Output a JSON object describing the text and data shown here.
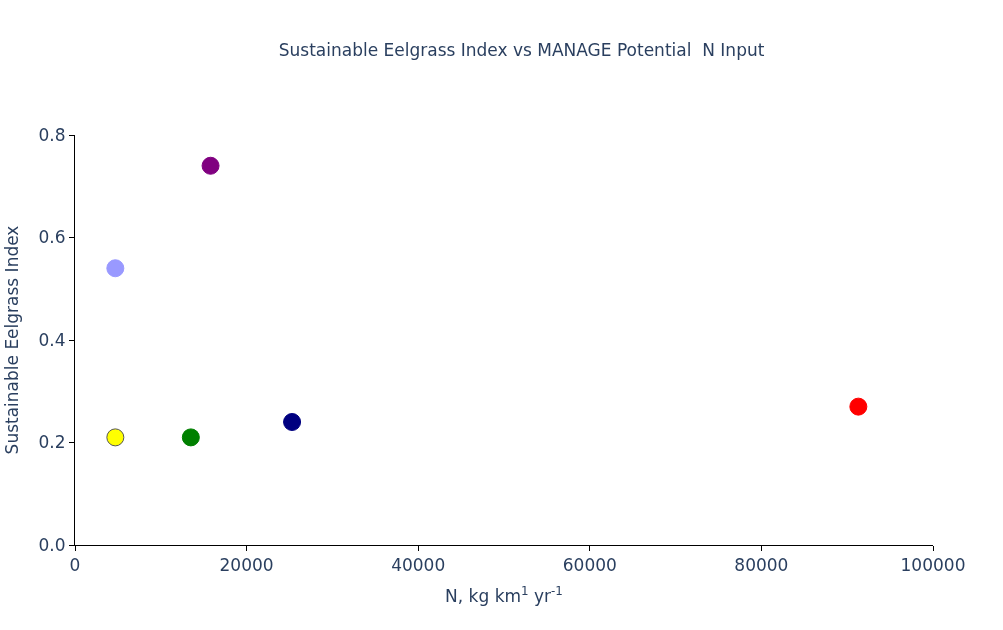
{
  "chart_data": {
    "type": "scatter",
    "title": "Sustainable Eelgrass Index vs MANAGE Potential  N Input",
    "xlabel": "N, kg km$^{1}$ yr$^{-1}$",
    "ylabel": "Sustainable Eelgrass Index",
    "x": [
      4700,
      15800,
      4700,
      13500,
      25300,
      91300
    ],
    "values": [
      0.54,
      0.74,
      0.21,
      0.21,
      0.24,
      0.27
    ],
    "colors": [
      "#9999ff",
      "#800080",
      "#ffff00",
      "#008000",
      "#000080",
      "#ff0000"
    ],
    "xlim": [
      0,
      100000
    ],
    "xticks": [
      0,
      20000,
      40000,
      60000,
      80000,
      100000
    ],
    "ylim": [
      0,
      0.8
    ],
    "yticks": [
      {
        "value": 0,
        "label": "0.0"
      },
      0.2,
      0.4,
      0.6,
      0.8
    ],
    "marker": "circle"
  }
}
